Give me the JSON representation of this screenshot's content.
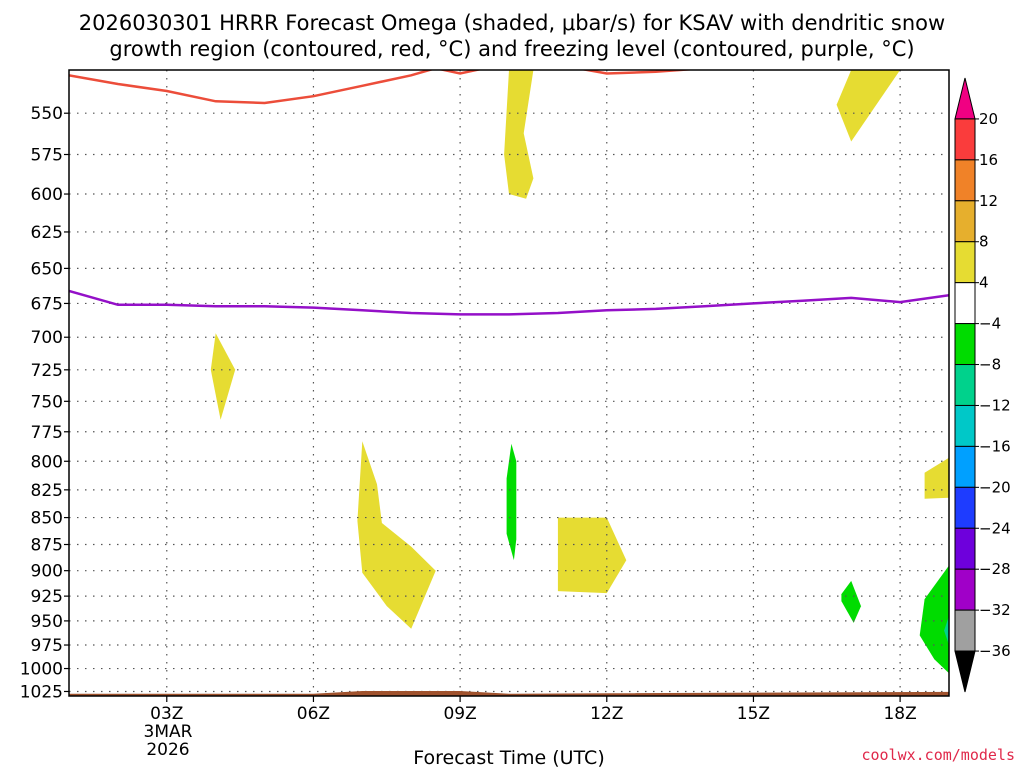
{
  "title_line1": "2026030301 HRRR Forecast Omega (shaded, μbar/s) for KSAV with dendritic snow",
  "title_line2": "growth region (contoured, red, °C) and freezing level (contoured, purple, °C)",
  "credit": "coolwx.com/models",
  "chart_data": {
    "type": "heatmap",
    "xlabel": "Forecast Time (UTC)",
    "x_ticks": [
      "03Z",
      "06Z",
      "09Z",
      "12Z",
      "15Z",
      "18Z"
    ],
    "x_tick_hours": [
      3,
      6,
      9,
      12,
      15,
      18
    ],
    "x_date_label": [
      "3MAR",
      "2026"
    ],
    "xlim_hours": [
      1.0,
      19.0
    ],
    "y_ticks": [
      550,
      575,
      600,
      625,
      650,
      675,
      700,
      725,
      750,
      775,
      800,
      825,
      850,
      875,
      900,
      925,
      950,
      975,
      1000,
      1025
    ],
    "ylabel": "",
    "ylim_hpa": [
      525,
      1030
    ],
    "y_scale": "log",
    "grid": true,
    "colorbar": {
      "levels": [
        -36,
        -32,
        -28,
        -24,
        -20,
        -16,
        -12,
        -8,
        -4,
        4,
        8,
        12,
        16,
        20
      ],
      "colors": [
        "#000000",
        "#a0a0a0",
        "#a000c8",
        "#6e00dc",
        "#1e3cff",
        "#00a0ff",
        "#00c8c8",
        "#00d28c",
        "#00dc00",
        "#ffffff",
        "#e6dc32",
        "#e6af2d",
        "#f08228",
        "#fa3c3c",
        "#f00082"
      ]
    },
    "omega_regions": [
      {
        "color": "#e6dc32",
        "points": [
          [
            10.0,
            525
          ],
          [
            10.5,
            525
          ],
          [
            10.3,
            562
          ],
          [
            10.5,
            590
          ],
          [
            10.35,
            603
          ],
          [
            10.0,
            600
          ],
          [
            9.9,
            575
          ]
        ]
      },
      {
        "color": "#e6dc32",
        "points": [
          [
            17.0,
            525
          ],
          [
            18.0,
            525
          ],
          [
            17.0,
            567
          ],
          [
            16.7,
            545
          ]
        ]
      },
      {
        "color": "#e6dc32",
        "points": [
          [
            4.0,
            697
          ],
          [
            4.4,
            725
          ],
          [
            4.1,
            765
          ],
          [
            3.9,
            725
          ]
        ]
      },
      {
        "color": "#e6dc32",
        "points": [
          [
            7.0,
            783
          ],
          [
            7.3,
            820
          ],
          [
            7.4,
            855
          ],
          [
            8.0,
            877
          ],
          [
            8.5,
            900
          ],
          [
            8.0,
            958
          ],
          [
            7.5,
            935
          ],
          [
            7.0,
            902
          ],
          [
            6.9,
            853
          ]
        ]
      },
      {
        "color": "#e6dc32",
        "points": [
          [
            11.0,
            850
          ],
          [
            12.0,
            850
          ],
          [
            12.4,
            890
          ],
          [
            12.0,
            922
          ],
          [
            11.0,
            920
          ]
        ]
      },
      {
        "color": "#e6dc32",
        "points": [
          [
            18.5,
            810
          ],
          [
            19.0,
            797
          ],
          [
            19.0,
            832
          ],
          [
            18.5,
            833
          ]
        ]
      },
      {
        "color": "#00dc00",
        "points": [
          [
            10.05,
            785
          ],
          [
            10.15,
            800
          ],
          [
            10.15,
            870
          ],
          [
            10.1,
            890
          ],
          [
            9.95,
            865
          ],
          [
            9.95,
            815
          ]
        ]
      },
      {
        "color": "#00dc00",
        "points": [
          [
            16.8,
            923
          ],
          [
            17.0,
            910
          ],
          [
            17.2,
            935
          ],
          [
            17.05,
            952
          ],
          [
            16.8,
            930
          ]
        ]
      },
      {
        "color": "#00dc00",
        "points": [
          [
            19.0,
            895
          ],
          [
            19.0,
            1005
          ],
          [
            18.7,
            990
          ],
          [
            18.4,
            965
          ],
          [
            18.5,
            928
          ]
        ]
      },
      {
        "color": "#00d28c",
        "points": [
          [
            19.0,
            945
          ],
          [
            19.0,
            975
          ],
          [
            18.9,
            960
          ]
        ]
      }
    ],
    "dgz_contour": {
      "color": "#ec4d3a",
      "points": [
        [
          1.0,
          528
        ],
        [
          2.0,
          533
        ],
        [
          3.0,
          537
        ],
        [
          4.0,
          543
        ],
        [
          5.0,
          544
        ],
        [
          6.0,
          540
        ],
        [
          7.0,
          534
        ],
        [
          8.0,
          528
        ],
        [
          8.5,
          524
        ],
        [
          9.0,
          527
        ],
        [
          9.5,
          524
        ],
        [
          10.0,
          521
        ],
        [
          11.0,
          522
        ],
        [
          12.0,
          527
        ],
        [
          13.0,
          526
        ],
        [
          14.0,
          524
        ],
        [
          15.0,
          521
        ]
      ]
    },
    "freezing_contour": {
      "color": "#9410c8",
      "points": [
        [
          1.0,
          666
        ],
        [
          2.0,
          676
        ],
        [
          3.0,
          676
        ],
        [
          4.0,
          677
        ],
        [
          5.0,
          677
        ],
        [
          6.0,
          678
        ],
        [
          7.0,
          680
        ],
        [
          8.0,
          682
        ],
        [
          9.0,
          683
        ],
        [
          10.0,
          683
        ],
        [
          11.0,
          682
        ],
        [
          12.0,
          680
        ],
        [
          13.0,
          679
        ],
        [
          14.0,
          677
        ],
        [
          15.0,
          675
        ],
        [
          16.0,
          673
        ],
        [
          17.0,
          671
        ],
        [
          18.0,
          674
        ],
        [
          19.0,
          669
        ]
      ]
    },
    "terrain": {
      "color": "#a0522d",
      "points": [
        [
          1.0,
          1028
        ],
        [
          6.0,
          1028
        ],
        [
          7.0,
          1025
        ],
        [
          9.0,
          1025
        ],
        [
          10.0,
          1028
        ],
        [
          19.0,
          1026
        ]
      ]
    }
  }
}
